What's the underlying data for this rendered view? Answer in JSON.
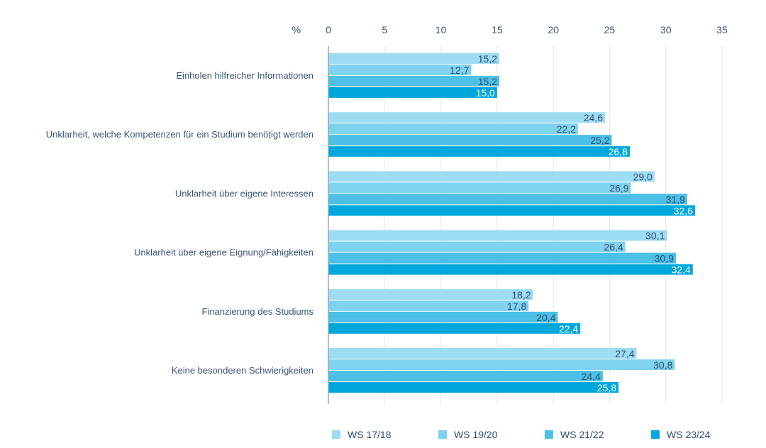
{
  "chart_data": {
    "type": "bar",
    "orientation": "horizontal",
    "title": "",
    "xlabel": "%",
    "ylabel": "",
    "xlim": [
      0,
      35
    ],
    "x_ticks": [
      "0",
      "5",
      "10",
      "15",
      "20",
      "25",
      "30",
      "35"
    ],
    "x_tick_values": [
      0,
      5,
      10,
      15,
      20,
      25,
      30,
      35
    ],
    "axis_unit_label": "%",
    "grid": true,
    "legend_position": "bottom",
    "categories": [
      "Einholen hilfreicher Informationen",
      "Unklarheit, welche Kompetenzen für ein Studium benötigt werden",
      "Unklarheit über eigene Interessen",
      "Unklarheit über eigene Eignung/Fähigkeiten",
      "Finanzierung des Studiums",
      "Keine besonderen Schwierigkeiten"
    ],
    "series": [
      {
        "name": "WS 17/18",
        "color": "#9ddcf3",
        "label_color": "#2f4d70",
        "values": [
          15.2,
          24.6,
          29.0,
          30.1,
          18.2,
          27.4
        ],
        "labels": [
          "15,2",
          "24,6",
          "29,0",
          "30,1",
          "18,2",
          "27,4"
        ]
      },
      {
        "name": "WS 19/20",
        "color": "#7fd3ef",
        "label_color": "#2f4d70",
        "values": [
          12.7,
          22.2,
          26.9,
          26.4,
          17.8,
          30.8
        ],
        "labels": [
          "12,7",
          "22,2",
          "26,9",
          "26,4",
          "17,8",
          "30,8"
        ]
      },
      {
        "name": "WS 21/22",
        "color": "#4cc0e7",
        "label_color": "#2f4d70",
        "values": [
          15.2,
          25.2,
          31.9,
          30.9,
          20.4,
          24.4
        ],
        "labels": [
          "15,2",
          "25,2",
          "31,9",
          "30,9",
          "20,4",
          "24,4"
        ]
      },
      {
        "name": "WS 23/24",
        "color": "#00a7dd",
        "label_color": "#ffffff",
        "values": [
          15.0,
          26.8,
          32.6,
          32.4,
          22.4,
          25.8
        ],
        "labels": [
          "15,0",
          "26,8",
          "32,6",
          "32,4",
          "22,4",
          "25,8"
        ]
      }
    ]
  }
}
